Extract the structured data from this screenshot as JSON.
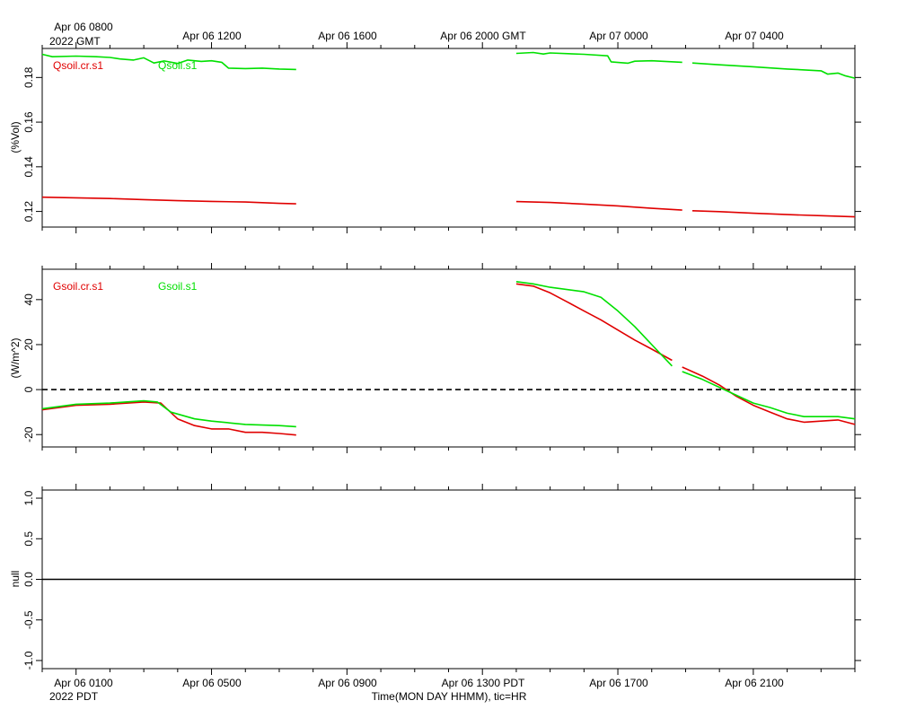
{
  "top_time_axis": {
    "labels": [
      "Apr 06 0800",
      "Apr 06 1200",
      "Apr 06 1600",
      "Apr 06 2000 GMT",
      "Apr 07 0000",
      "Apr 07 0400"
    ],
    "year_label": "2022 GMT"
  },
  "bottom_time_axis": {
    "labels": [
      "Apr 06 0100",
      "Apr 06 0500",
      "Apr 06 0900",
      "Apr 06 1300 PDT",
      "Apr 06 1700",
      "Apr 06 2100"
    ],
    "year_label": "2022 PDT",
    "xlabel": "Time(MON DAY HHMM), tic=HR"
  },
  "colors": {
    "red": "#e00000",
    "green": "#00e000"
  },
  "chart_data": [
    {
      "type": "line",
      "name": "soil-moisture",
      "ylabel": "(%Vol)",
      "ylim": [
        0.113,
        0.193
      ],
      "yticks": [
        0.12,
        0.14,
        0.16,
        0.18
      ],
      "ytick_labels": [
        "0.12",
        "0.14",
        "0.16",
        "0.18"
      ],
      "xlim_hours_from_0100_pdt": [
        -1.0,
        23.0
      ],
      "zero_line": false,
      "series": [
        {
          "name": "Qsoil.cr.s1",
          "color": "red",
          "segments": [
            [
              [
                -1.0,
                0.1264
              ],
              [
                1,
                0.1258
              ],
              [
                2,
                0.1253
              ],
              [
                3,
                0.1248
              ],
              [
                4,
                0.1245
              ],
              [
                5,
                0.1242
              ],
              [
                6,
                0.1236
              ],
              [
                6.5,
                0.1234
              ]
            ],
            [
              [
                13.0,
                0.1244
              ],
              [
                14,
                0.124
              ],
              [
                15,
                0.1233
              ],
              [
                16,
                0.1225
              ],
              [
                17,
                0.1214
              ],
              [
                17.9,
                0.1206
              ]
            ],
            [
              [
                18.2,
                0.1203
              ],
              [
                19,
                0.1199
              ],
              [
                20,
                0.1192
              ],
              [
                21,
                0.1186
              ],
              [
                22,
                0.1181
              ],
              [
                23,
                0.1176
              ]
            ]
          ]
        },
        {
          "name": "Qsoil.s1",
          "color": "green",
          "segments": [
            [
              [
                -1.0,
                0.1904
              ],
              [
                -0.7,
                0.1893
              ],
              [
                0,
                0.1896
              ],
              [
                0.6,
                0.1893
              ],
              [
                1,
                0.189
              ],
              [
                1.3,
                0.1883
              ],
              [
                1.7,
                0.1878
              ],
              [
                2,
                0.1888
              ],
              [
                2.3,
                0.1865
              ],
              [
                2.6,
                0.1874
              ],
              [
                3,
                0.1863
              ],
              [
                3.3,
                0.1878
              ],
              [
                3.7,
                0.1872
              ],
              [
                4,
                0.1875
              ],
              [
                4.3,
                0.1868
              ],
              [
                4.5,
                0.1842
              ],
              [
                5,
                0.184
              ],
              [
                5.5,
                0.1842
              ],
              [
                6,
                0.1838
              ],
              [
                6.5,
                0.1836
              ]
            ],
            [
              [
                13.0,
                0.1908
              ],
              [
                13.5,
                0.1912
              ],
              [
                13.8,
                0.1905
              ],
              [
                14,
                0.191
              ],
              [
                15,
                0.1904
              ],
              [
                15.7,
                0.1897
              ],
              [
                15.8,
                0.187
              ],
              [
                16.3,
                0.1864
              ],
              [
                16.5,
                0.1873
              ],
              [
                17,
                0.1875
              ],
              [
                17.9,
                0.1868
              ]
            ],
            [
              [
                18.2,
                0.1865
              ],
              [
                19,
                0.1857
              ],
              [
                20,
                0.1848
              ],
              [
                21,
                0.1838
              ],
              [
                22,
                0.183
              ],
              [
                22.2,
                0.1815
              ],
              [
                22.5,
                0.182
              ],
              [
                22.7,
                0.1808
              ],
              [
                23,
                0.1797
              ]
            ]
          ]
        }
      ]
    },
    {
      "type": "line",
      "name": "ground-heat-flux",
      "ylabel": "(W/m^2)",
      "ylim": [
        -25.5,
        53.5
      ],
      "yticks": [
        -20,
        0,
        20,
        40
      ],
      "ytick_labels": [
        "-20",
        "0",
        "20",
        "40"
      ],
      "xlim_hours_from_0100_pdt": [
        -1.0,
        23.0
      ],
      "zero_line": true,
      "series": [
        {
          "name": "Gsoil.cr.s1",
          "color": "red",
          "segments": [
            [
              [
                -1.0,
                -9
              ],
              [
                0,
                -7
              ],
              [
                1,
                -6.5
              ],
              [
                2,
                -5.5
              ],
              [
                2.5,
                -6
              ],
              [
                3,
                -13
              ],
              [
                3.5,
                -16
              ],
              [
                4,
                -17.5
              ],
              [
                4.5,
                -17.5
              ],
              [
                5,
                -19
              ],
              [
                5.5,
                -19
              ],
              [
                6,
                -19.5
              ],
              [
                6.5,
                -20.2
              ]
            ],
            [
              [
                13.0,
                47
              ],
              [
                13.5,
                46
              ],
              [
                14,
                43
              ],
              [
                14.5,
                39
              ],
              [
                15,
                35
              ],
              [
                15.5,
                31
              ],
              [
                16,
                26.5
              ],
              [
                16.5,
                22
              ],
              [
                17,
                18
              ],
              [
                17.6,
                13
              ]
            ],
            [
              [
                17.9,
                10
              ],
              [
                18.5,
                6
              ],
              [
                19,
                2
              ],
              [
                19.5,
                -3
              ],
              [
                20,
                -7
              ],
              [
                20.5,
                -10
              ],
              [
                21,
                -13
              ],
              [
                21.5,
                -14.5
              ],
              [
                22,
                -14
              ],
              [
                22.5,
                -13.5
              ],
              [
                23,
                -15.5
              ]
            ]
          ]
        },
        {
          "name": "Gsoil.s1",
          "color": "green",
          "segments": [
            [
              [
                -1.0,
                -8.5
              ],
              [
                0,
                -6.5
              ],
              [
                1,
                -6
              ],
              [
                2,
                -5
              ],
              [
                2.4,
                -5.5
              ],
              [
                2.8,
                -10
              ],
              [
                3.5,
                -13
              ],
              [
                4,
                -14
              ],
              [
                5,
                -15.5
              ],
              [
                6,
                -16
              ],
              [
                6.5,
                -16.5
              ]
            ],
            [
              [
                13.0,
                48
              ],
              [
                13.5,
                47
              ],
              [
                14,
                45.5
              ],
              [
                15,
                43.5
              ],
              [
                15.5,
                41
              ],
              [
                16,
                35
              ],
              [
                16.5,
                28
              ],
              [
                17,
                20
              ],
              [
                17.6,
                10.5
              ]
            ],
            [
              [
                17.9,
                8
              ],
              [
                18.5,
                4.5
              ],
              [
                19,
                1
              ],
              [
                19.5,
                -2.5
              ],
              [
                20,
                -6
              ],
              [
                20.5,
                -8
              ],
              [
                21,
                -10.5
              ],
              [
                21.5,
                -12
              ],
              [
                22,
                -12
              ],
              [
                22.5,
                -12
              ],
              [
                23,
                -13
              ]
            ]
          ]
        }
      ]
    },
    {
      "type": "line",
      "name": "null-panel",
      "ylabel": "null",
      "ylim": [
        -1.1,
        1.1
      ],
      "yticks": [
        -1.0,
        -0.5,
        0.0,
        0.5,
        1.0
      ],
      "ytick_labels": [
        "-1.0",
        "-0.5",
        "0.0",
        "0.5",
        "1.0"
      ],
      "xlim_hours_from_0100_pdt": [
        -1.0,
        23.0
      ],
      "zero_line_solid": true,
      "series": []
    }
  ]
}
